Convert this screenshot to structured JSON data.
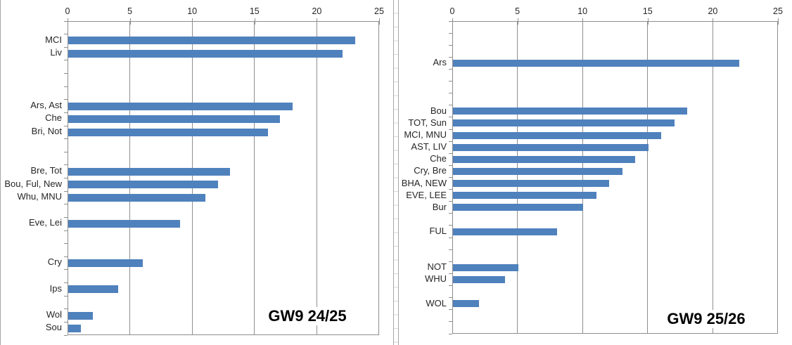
{
  "colors": {
    "bar": "#4f81bd",
    "gridline": "#8e8e8e",
    "plot_border": "#8e8e8e",
    "tick_label": "#262626",
    "category_label": "#262626",
    "title": "#000000",
    "chart_border": "#a6a6a6",
    "sheet_gridline": "#d9d9d9",
    "background": "#ffffff"
  },
  "chart_data": [
    {
      "type": "bar",
      "orientation": "horizontal",
      "title": "GW9 24/25",
      "xlabel": "",
      "ylabel": "",
      "xlim": [
        0,
        25
      ],
      "xticks": [
        0,
        5,
        10,
        15,
        20,
        25
      ],
      "grid": true,
      "value_axis_position": "top",
      "rows": [
        {
          "label": "",
          "value": null
        },
        {
          "label": "MCI",
          "value": 23
        },
        {
          "label": "Liv",
          "value": 22
        },
        {
          "label": "",
          "value": null
        },
        {
          "label": "",
          "value": null
        },
        {
          "label": "",
          "value": null
        },
        {
          "label": "Ars, Ast",
          "value": 18
        },
        {
          "label": "Che",
          "value": 17
        },
        {
          "label": "Bri, Not",
          "value": 16
        },
        {
          "label": "",
          "value": null
        },
        {
          "label": "",
          "value": null
        },
        {
          "label": "Bre, Tot",
          "value": 13
        },
        {
          "label": "Bou, Ful, New",
          "value": 12
        },
        {
          "label": "Whu, MNU",
          "value": 11
        },
        {
          "label": "",
          "value": null
        },
        {
          "label": "Eve, Lei",
          "value": 9
        },
        {
          "label": "",
          "value": null
        },
        {
          "label": "",
          "value": null
        },
        {
          "label": "Cry",
          "value": 6
        },
        {
          "label": "",
          "value": null
        },
        {
          "label": "Ips",
          "value": 4
        },
        {
          "label": "",
          "value": null
        },
        {
          "label": "Wol",
          "value": 2
        },
        {
          "label": "Sou",
          "value": 1
        }
      ]
    },
    {
      "type": "bar",
      "orientation": "horizontal",
      "title": "GW9 25/26",
      "xlabel": "",
      "ylabel": "",
      "xlim": [
        0,
        25
      ],
      "xticks": [
        0,
        5,
        10,
        15,
        20,
        25
      ],
      "grid": true,
      "value_axis_position": "top",
      "rows": [
        {
          "label": "",
          "value": null
        },
        {
          "label": "",
          "value": null
        },
        {
          "label": "",
          "value": null
        },
        {
          "label": "Ars",
          "value": 22
        },
        {
          "label": "",
          "value": null
        },
        {
          "label": "",
          "value": null
        },
        {
          "label": "",
          "value": null
        },
        {
          "label": "Bou",
          "value": 18
        },
        {
          "label": "TOT, Sun",
          "value": 17
        },
        {
          "label": "MCI, MNU",
          "value": 16
        },
        {
          "label": "AST, LIV",
          "value": 15
        },
        {
          "label": "Che",
          "value": 14
        },
        {
          "label": "Cry, Bre",
          "value": 13
        },
        {
          "label": "BHA, NEW",
          "value": 12
        },
        {
          "label": "EVE, LEE",
          "value": 11
        },
        {
          "label": "Bur",
          "value": 10
        },
        {
          "label": "",
          "value": null
        },
        {
          "label": "FUL",
          "value": 8
        },
        {
          "label": "",
          "value": null
        },
        {
          "label": "",
          "value": null
        },
        {
          "label": "NOT",
          "value": 5
        },
        {
          "label": "WHU",
          "value": 4
        },
        {
          "label": "",
          "value": null
        },
        {
          "label": "WOL",
          "value": 2
        },
        {
          "label": "",
          "value": null
        },
        {
          "label": "",
          "value": null
        }
      ]
    }
  ]
}
